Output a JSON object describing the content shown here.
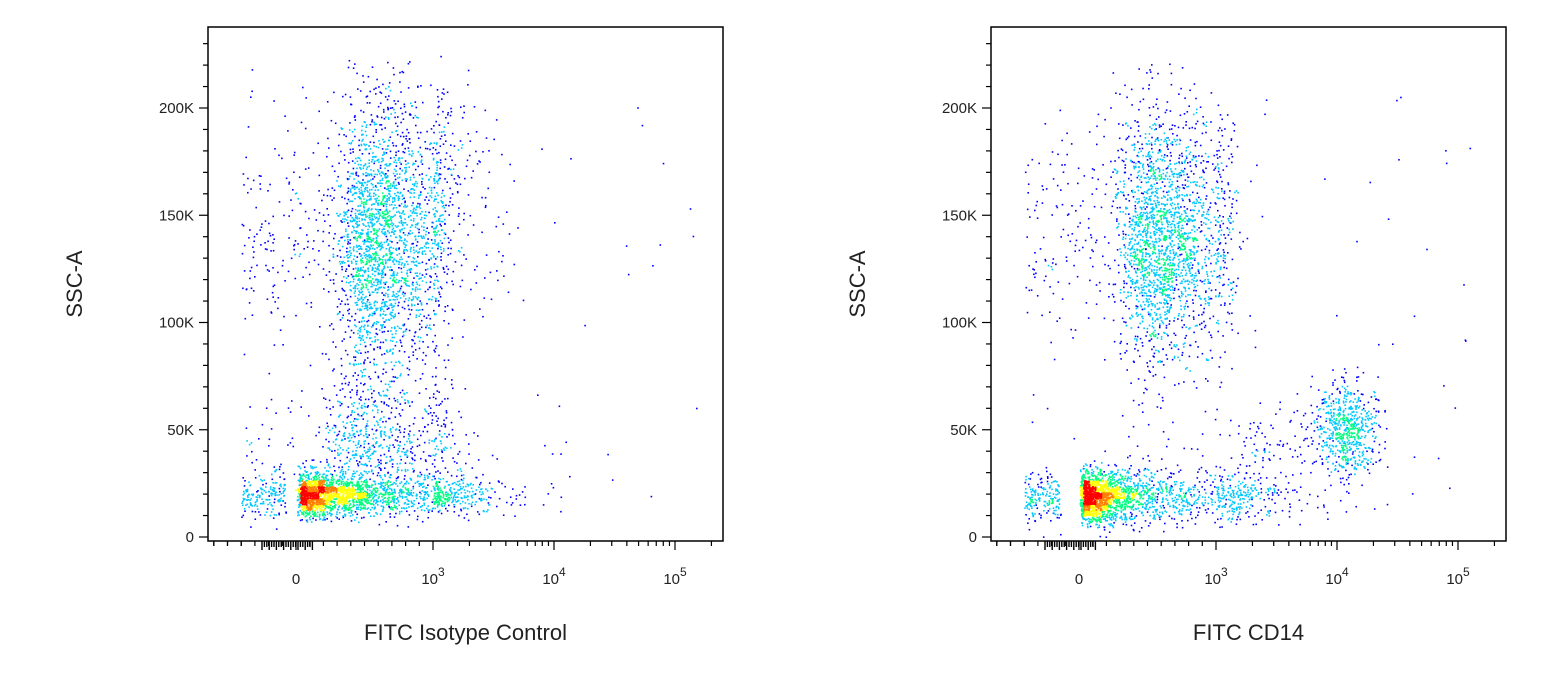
{
  "chart_data": [
    {
      "type": "scatter",
      "density_colored": true,
      "xlabel": "FITC Isotype Control",
      "ylabel": "SSC-A",
      "x_scale": "biexponential",
      "y_scale": "linear",
      "ylim": [
        0,
        240000
      ],
      "xlim": [
        -600,
        200000
      ],
      "x_tick_labels": [
        {
          "value": 0,
          "label": "0"
        },
        {
          "value": 1000,
          "label": "10",
          "exp": "3"
        },
        {
          "value": 10000,
          "label": "10",
          "exp": "4"
        },
        {
          "value": 100000,
          "label": "10",
          "exp": "5"
        }
      ],
      "y_tick_labels": [
        {
          "value": 0,
          "label": "0"
        },
        {
          "value": 50000,
          "label": "50K"
        },
        {
          "value": 100000,
          "label": "100K"
        },
        {
          "value": 150000,
          "label": "150K"
        },
        {
          "value": 200000,
          "label": "200K"
        }
      ],
      "populations": [
        {
          "x_center": 270,
          "y_center": 20000,
          "x_spread": 0.5,
          "y_spread": 5000,
          "count": 2400
        },
        {
          "x_center": 600,
          "y_center": 45000,
          "x_spread": 0.2,
          "y_spread": 15000,
          "count": 700
        },
        {
          "x_center": 650,
          "y_center": 140000,
          "x_spread": 0.15,
          "y_spread": 32000,
          "count": 2600
        },
        {
          "x_center": 2000,
          "y_center": 160000,
          "x_spread": 0.2,
          "y_spread": 30000,
          "count": 120
        }
      ],
      "density_colors": [
        "#0000ff",
        "#00c8ff",
        "#00ff80",
        "#ffff00",
        "#ff8000",
        "#ff0000"
      ]
    },
    {
      "type": "scatter",
      "density_colored": true,
      "xlabel": "FITC CD14",
      "ylabel": "SSC-A",
      "x_scale": "biexponential",
      "y_scale": "linear",
      "ylim": [
        0,
        240000
      ],
      "xlim": [
        -600,
        200000
      ],
      "x_tick_labels": [
        {
          "value": 0,
          "label": "0"
        },
        {
          "value": 1000,
          "label": "10",
          "exp": "3"
        },
        {
          "value": 10000,
          "label": "10",
          "exp": "4"
        },
        {
          "value": 100000,
          "label": "10",
          "exp": "5"
        }
      ],
      "y_tick_labels": [
        {
          "value": 0,
          "label": "0"
        },
        {
          "value": 50000,
          "label": "50K"
        },
        {
          "value": 100000,
          "label": "100K"
        },
        {
          "value": 150000,
          "label": "150K"
        },
        {
          "value": 200000,
          "label": "200K"
        }
      ],
      "populations": [
        {
          "x_center": 220,
          "y_center": 19000,
          "x_spread": 0.55,
          "y_spread": 6000,
          "count": 2400
        },
        {
          "x_center": 620,
          "y_center": 140000,
          "x_spread": 0.15,
          "y_spread": 30000,
          "count": 2400
        },
        {
          "x_center": 12000,
          "y_center": 50000,
          "x_spread": 0.12,
          "y_spread": 11000,
          "count": 650
        },
        {
          "x_center": 3000,
          "y_center": 42000,
          "x_spread": 0.35,
          "y_spread": 7000,
          "count": 90
        }
      ],
      "density_colors": [
        "#0000ff",
        "#00c8ff",
        "#00ff80",
        "#ffff00",
        "#ff8000",
        "#ff0000"
      ]
    }
  ]
}
